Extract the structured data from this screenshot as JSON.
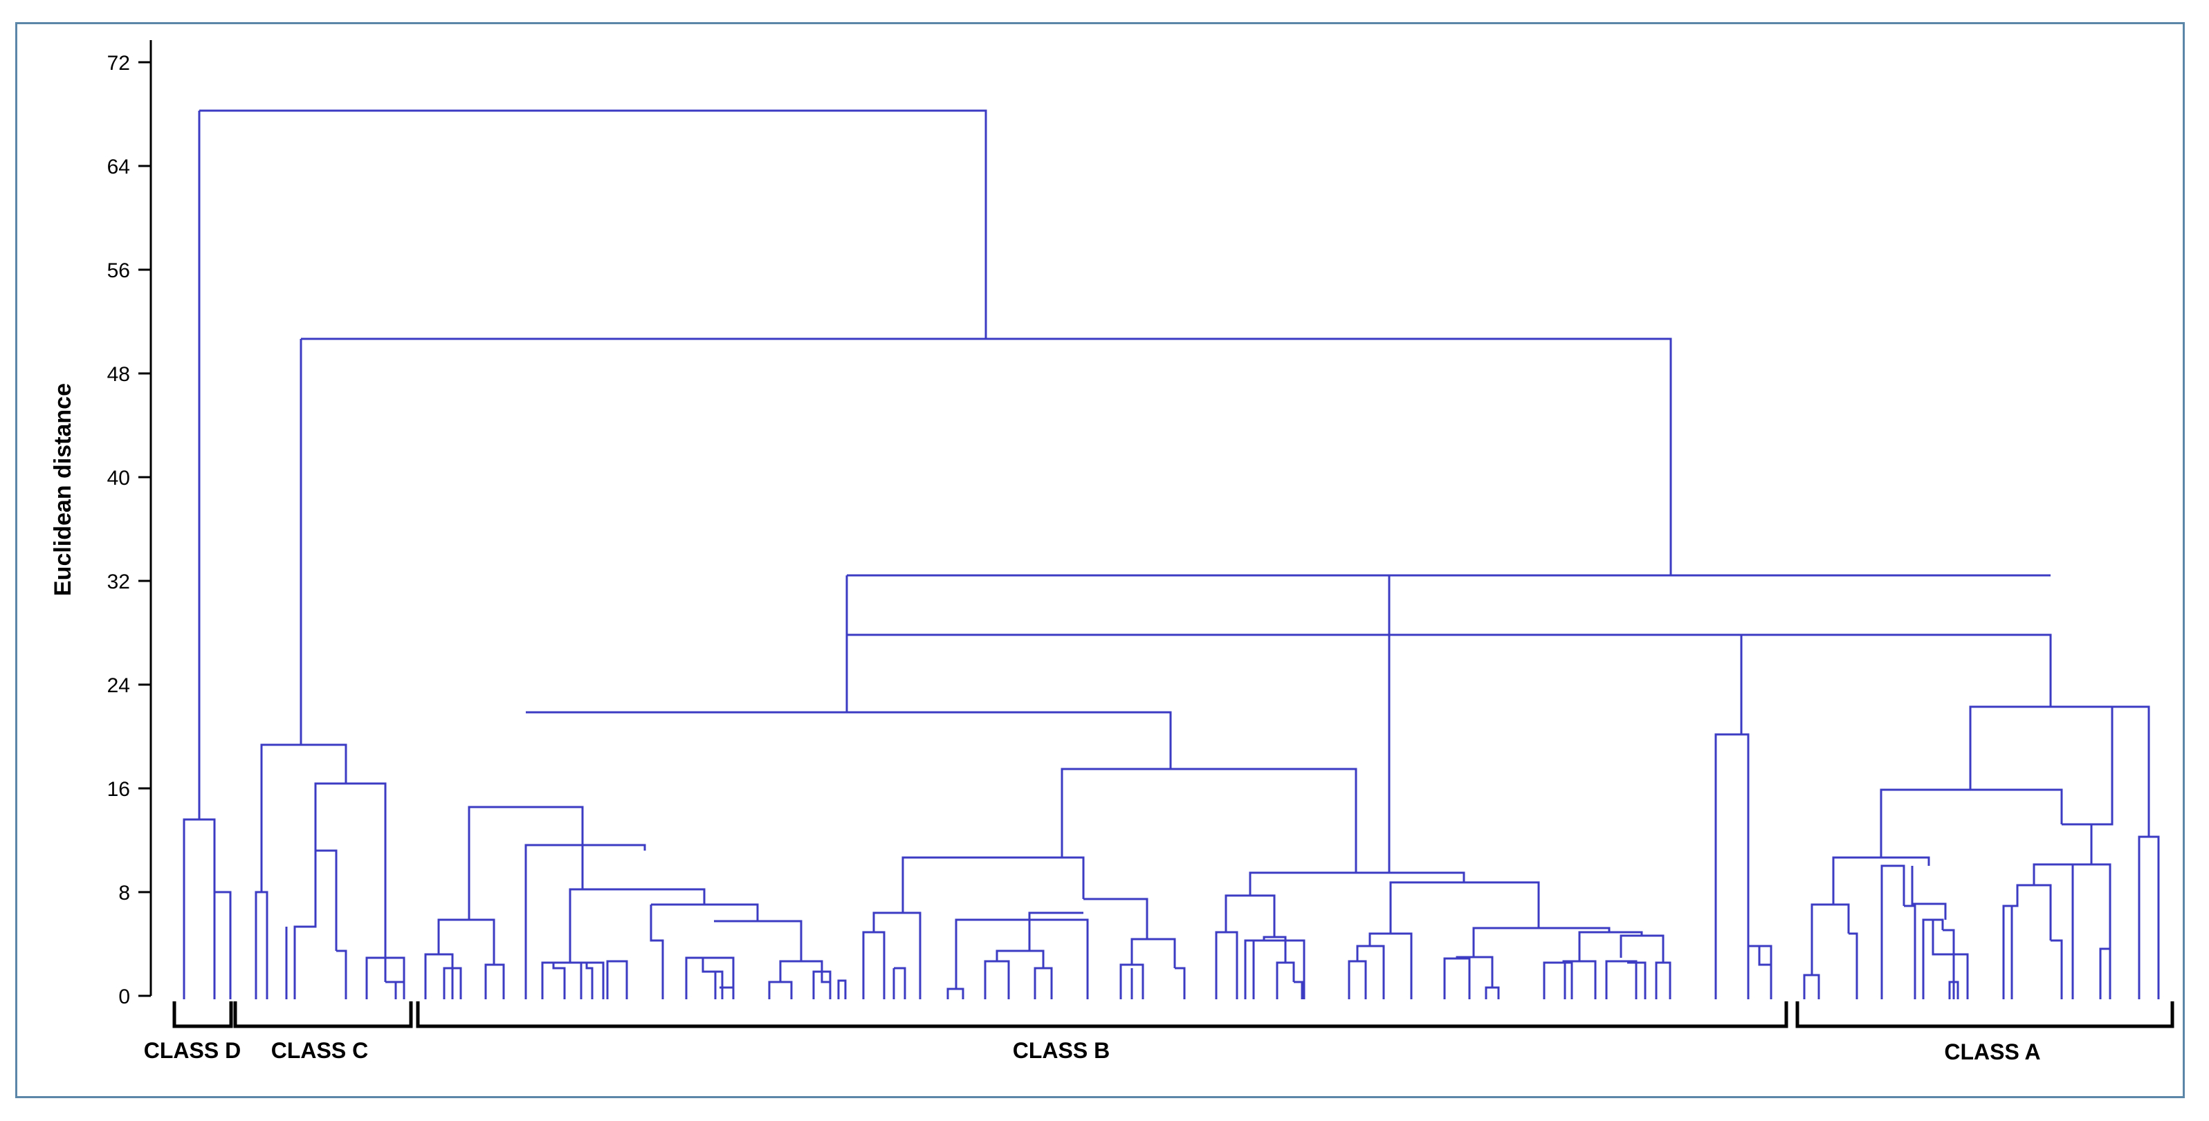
{
  "axis": {
    "ylabel": "Euclidean distance",
    "ticks": [
      "0",
      "8",
      "16",
      "24",
      "32",
      "40",
      "48",
      "56",
      "64",
      "72"
    ],
    "ymax": 72
  },
  "colors": {
    "link": "#3b3bc4",
    "frame": "#5b86a8"
  },
  "classes": [
    {
      "label": "CLASS D"
    },
    {
      "label": "CLASS C"
    },
    {
      "label": "CLASS B"
    },
    {
      "label": "CLASS A"
    }
  ]
}
